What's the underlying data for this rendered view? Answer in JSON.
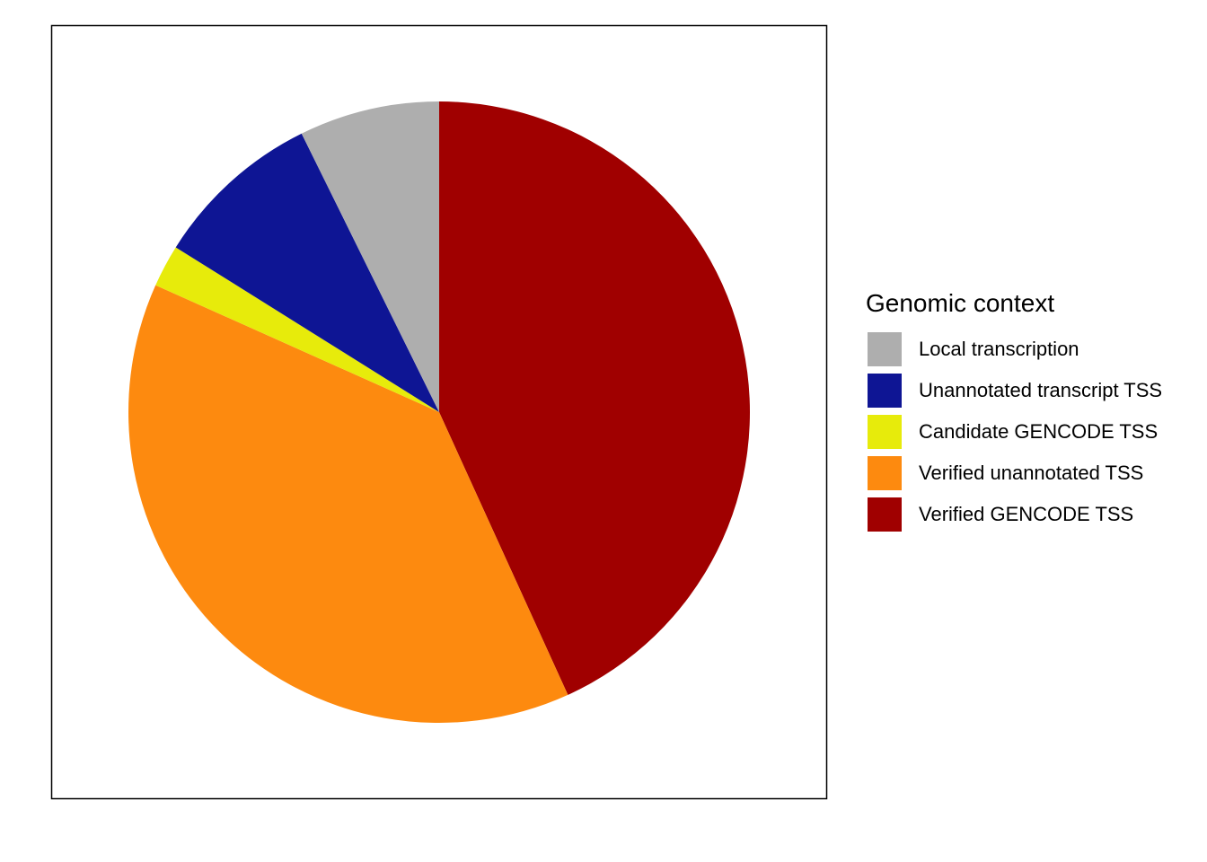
{
  "chart_data": {
    "type": "pie",
    "legend_title": "Genomic context",
    "legend_placement": "right",
    "grid": false,
    "start_angle": "top",
    "direction": "clockwise",
    "slices": [
      {
        "label": "Verified GENCODE TSS",
        "value": 43.2,
        "color": "#A00000"
      },
      {
        "label": "Verified unannotated TSS",
        "value": 38.5,
        "color": "#FD8A0F"
      },
      {
        "label": "Candidate GENCODE TSS",
        "value": 2.2,
        "color": "#E7EB0B"
      },
      {
        "label": "Unannotated transcript TSS",
        "value": 8.8,
        "color": "#0E1594"
      },
      {
        "label": "Local transcription",
        "value": 7.3,
        "color": "#AEAEAE"
      }
    ],
    "legend_order": [
      "Local transcription",
      "Unannotated transcript TSS",
      "Candidate GENCODE TSS",
      "Verified unannotated TSS",
      "Verified GENCODE TSS"
    ]
  }
}
